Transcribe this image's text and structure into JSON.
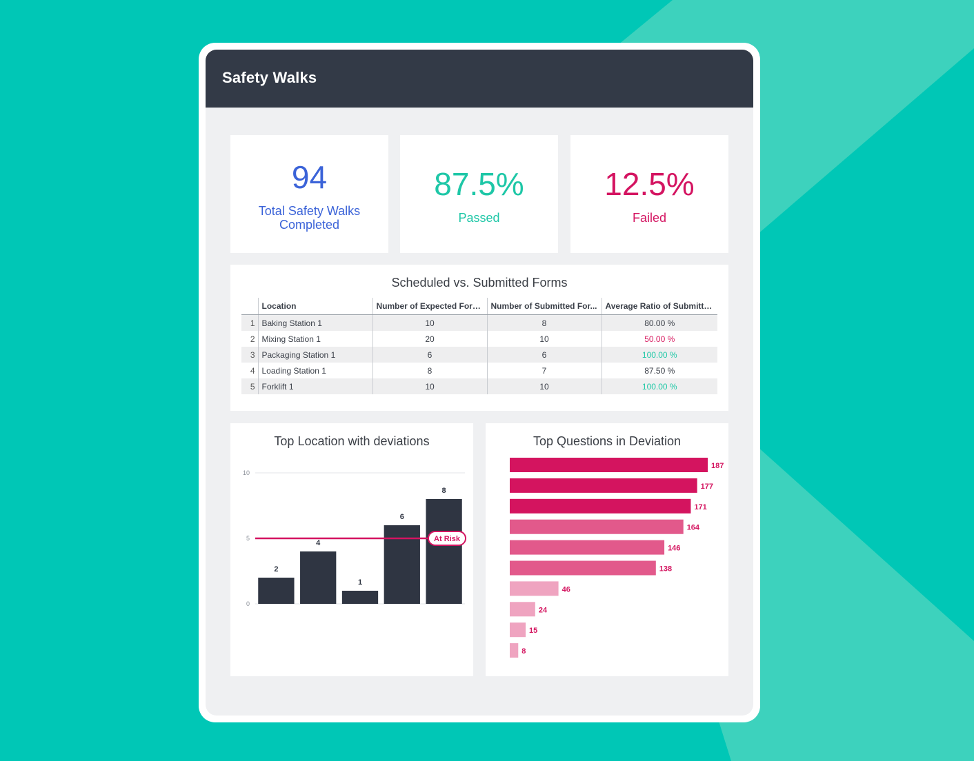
{
  "app": {
    "title": "Safety Walks"
  },
  "kpis": [
    {
      "value": "94",
      "label_line1": "Total Safety Walks",
      "label_line2": "Completed",
      "color": "#3b63d8"
    },
    {
      "value": "87.5%",
      "label": "Passed",
      "color": "#1ec7a7"
    },
    {
      "value": "12.5%",
      "label": "Failed",
      "color": "#d41461"
    }
  ],
  "forms_table": {
    "title": "Scheduled vs. Submitted Forms",
    "columns": [
      "Location",
      "Number of Expected Forms",
      "Number of Submitted For...",
      "Average Ratio of Submitte..."
    ],
    "rows": [
      {
        "index": "1",
        "location": "Baking Station 1",
        "expected": "10",
        "submitted": "8",
        "ratio": "80.00 %",
        "status": "neutral"
      },
      {
        "index": "2",
        "location": "Mixing Station 1",
        "expected": "20",
        "submitted": "10",
        "ratio": "50.00 %",
        "status": "red"
      },
      {
        "index": "3",
        "location": "Packaging Station 1",
        "expected": "6",
        "submitted": "6",
        "ratio": "100.00 %",
        "status": "green"
      },
      {
        "index": "4",
        "location": "Loading Station 1",
        "expected": "8",
        "submitted": "7",
        "ratio": "87.50 %",
        "status": "neutral"
      },
      {
        "index": "5",
        "location": "Forklift 1",
        "expected": "10",
        "submitted": "10",
        "ratio": "100.00 %",
        "status": "green"
      }
    ]
  },
  "chart_data": [
    {
      "type": "bar",
      "title": "Top Location with deviations",
      "values": [
        2,
        4,
        1,
        6,
        8
      ],
      "ylim": [
        0,
        10
      ],
      "yticks": [
        "0",
        "5",
        "10"
      ],
      "grid": true,
      "bar_color": "#2f3542",
      "reference_line": {
        "value": 5,
        "label": "At Risk",
        "color": "#d41461"
      }
    },
    {
      "type": "bar",
      "orientation": "horizontal",
      "title": "Top Questions in Deviation",
      "values": [
        187,
        177,
        171,
        164,
        146,
        138,
        46,
        24,
        15,
        8
      ],
      "colors": [
        "#d4145f",
        "#d4145f",
        "#d4145f",
        "#e2598b",
        "#e2598b",
        "#e2598b",
        "#efa4c0",
        "#efa4c0",
        "#efa4c0",
        "#efa4c0"
      ],
      "label_color": "#d4145f"
    }
  ]
}
